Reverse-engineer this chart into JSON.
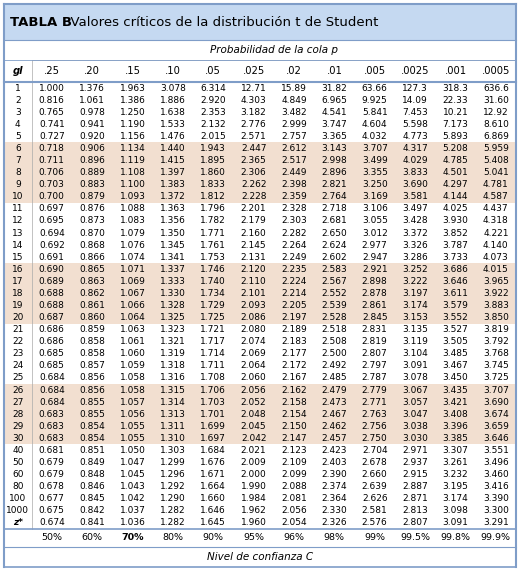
{
  "title_bold": "TABLA B",
  "title_normal": "  Valores críticos de la distribución t de Student",
  "subtitle": "Probabilidad de la cola p",
  "col_header": [
    "gl",
    ".25",
    ".20",
    ".15",
    ".10",
    ".05",
    ".025",
    ".02",
    ".01",
    ".005",
    ".0025",
    ".001",
    ".0005"
  ],
  "footer_row": [
    "",
    "50%",
    "60%",
    "70%",
    "80%",
    "90%",
    "95%",
    "96%",
    "98%",
    "99%",
    "99.5%",
    "99.8%",
    "99.9%"
  ],
  "footer_label": "Nivel de confianza C",
  "rows": [
    [
      "1",
      "1.000",
      "1.376",
      "1.963",
      "3.078",
      "6.314",
      "12.71",
      "15.89",
      "31.82",
      "63.66",
      "127.3",
      "318.3",
      "636.6"
    ],
    [
      "2",
      "0.816",
      "1.061",
      "1.386",
      "1.886",
      "2.920",
      "4.303",
      "4.849",
      "6.965",
      "9.925",
      "14.09",
      "22.33",
      "31.60"
    ],
    [
      "3",
      "0.765",
      "0.978",
      "1.250",
      "1.638",
      "2.353",
      "3.182",
      "3.482",
      "4.541",
      "5.841",
      "7.453",
      "10.21",
      "12.92"
    ],
    [
      "4",
      "0.741",
      "0.941",
      "1.190",
      "1.533",
      "2.132",
      "2.776",
      "2.999",
      "3.747",
      "4.604",
      "5.598",
      "7.173",
      "8.610"
    ],
    [
      "5",
      "0.727",
      "0.920",
      "1.156",
      "1.476",
      "2.015",
      "2.571",
      "2.757",
      "3.365",
      "4.032",
      "4.773",
      "5.893",
      "6.869"
    ],
    [
      "6",
      "0.718",
      "0.906",
      "1.134",
      "1.440",
      "1.943",
      "2.447",
      "2.612",
      "3.143",
      "3.707",
      "4.317",
      "5.208",
      "5.959"
    ],
    [
      "7",
      "0.711",
      "0.896",
      "1.119",
      "1.415",
      "1.895",
      "2.365",
      "2.517",
      "2.998",
      "3.499",
      "4.029",
      "4.785",
      "5.408"
    ],
    [
      "8",
      "0.706",
      "0.889",
      "1.108",
      "1.397",
      "1.860",
      "2.306",
      "2.449",
      "2.896",
      "3.355",
      "3.833",
      "4.501",
      "5.041"
    ],
    [
      "9",
      "0.703",
      "0.883",
      "1.100",
      "1.383",
      "1.833",
      "2.262",
      "2.398",
      "2.821",
      "3.250",
      "3.690",
      "4.297",
      "4.781"
    ],
    [
      "10",
      "0.700",
      "0.879",
      "1.093",
      "1.372",
      "1.812",
      "2.228",
      "2.359",
      "2.764",
      "3.169",
      "3.581",
      "4.144",
      "4.587"
    ],
    [
      "11",
      "0.697",
      "0.876",
      "1.088",
      "1.363",
      "1.796",
      "2.201",
      "2.328",
      "2.718",
      "3.106",
      "3.497",
      "4.025",
      "4.437"
    ],
    [
      "12",
      "0.695",
      "0.873",
      "1.083",
      "1.356",
      "1.782",
      "2.179",
      "2.303",
      "2.681",
      "3.055",
      "3.428",
      "3.930",
      "4.318"
    ],
    [
      "13",
      "0.694",
      "0.870",
      "1.079",
      "1.350",
      "1.771",
      "2.160",
      "2.282",
      "2.650",
      "3.012",
      "3.372",
      "3.852",
      "4.221"
    ],
    [
      "14",
      "0.692",
      "0.868",
      "1.076",
      "1.345",
      "1.761",
      "2.145",
      "2.264",
      "2.624",
      "2.977",
      "3.326",
      "3.787",
      "4.140"
    ],
    [
      "15",
      "0.691",
      "0.866",
      "1.074",
      "1.341",
      "1.753",
      "2.131",
      "2.249",
      "2.602",
      "2.947",
      "3.286",
      "3.733",
      "4.073"
    ],
    [
      "16",
      "0.690",
      "0.865",
      "1.071",
      "1.337",
      "1.746",
      "2.120",
      "2.235",
      "2.583",
      "2.921",
      "3.252",
      "3.686",
      "4.015"
    ],
    [
      "17",
      "0.689",
      "0.863",
      "1.069",
      "1.333",
      "1.740",
      "2.110",
      "2.224",
      "2.567",
      "2.898",
      "3.222",
      "3.646",
      "3.965"
    ],
    [
      "18",
      "0.688",
      "0.862",
      "1.067",
      "1.330",
      "1.734",
      "2.101",
      "2.214",
      "2.552",
      "2.878",
      "3.197",
      "3.611",
      "3.922"
    ],
    [
      "19",
      "0.688",
      "0.861",
      "1.066",
      "1.328",
      "1.729",
      "2.093",
      "2.205",
      "2.539",
      "2.861",
      "3.174",
      "3.579",
      "3.883"
    ],
    [
      "20",
      "0.687",
      "0.860",
      "1.064",
      "1.325",
      "1.725",
      "2.086",
      "2.197",
      "2.528",
      "2.845",
      "3.153",
      "3.552",
      "3.850"
    ],
    [
      "21",
      "0.686",
      "0.859",
      "1.063",
      "1.323",
      "1.721",
      "2.080",
      "2.189",
      "2.518",
      "2.831",
      "3.135",
      "3.527",
      "3.819"
    ],
    [
      "22",
      "0.686",
      "0.858",
      "1.061",
      "1.321",
      "1.717",
      "2.074",
      "2.183",
      "2.508",
      "2.819",
      "3.119",
      "3.505",
      "3.792"
    ],
    [
      "23",
      "0.685",
      "0.858",
      "1.060",
      "1.319",
      "1.714",
      "2.069",
      "2.177",
      "2.500",
      "2.807",
      "3.104",
      "3.485",
      "3.768"
    ],
    [
      "24",
      "0.685",
      "0.857",
      "1.059",
      "1.318",
      "1.711",
      "2.064",
      "2.172",
      "2.492",
      "2.797",
      "3.091",
      "3.467",
      "3.745"
    ],
    [
      "25",
      "0.684",
      "0.856",
      "1.058",
      "1.316",
      "1.708",
      "2.060",
      "2.167",
      "2.485",
      "2.787",
      "3.078",
      "3.450",
      "3.725"
    ],
    [
      "26",
      "0.684",
      "0.856",
      "1.058",
      "1.315",
      "1.706",
      "2.056",
      "2.162",
      "2.479",
      "2.779",
      "3.067",
      "3.435",
      "3.707"
    ],
    [
      "27",
      "0.684",
      "0.855",
      "1.057",
      "1.314",
      "1.703",
      "2.052",
      "2.158",
      "2.473",
      "2.771",
      "3.057",
      "3.421",
      "3.690"
    ],
    [
      "28",
      "0.683",
      "0.855",
      "1.056",
      "1.313",
      "1.701",
      "2.048",
      "2.154",
      "2.467",
      "2.763",
      "3.047",
      "3.408",
      "3.674"
    ],
    [
      "29",
      "0.683",
      "0.854",
      "1.055",
      "1.311",
      "1.699",
      "2.045",
      "2.150",
      "2.462",
      "2.756",
      "3.038",
      "3.396",
      "3.659"
    ],
    [
      "30",
      "0.683",
      "0.854",
      "1.055",
      "1.310",
      "1.697",
      "2.042",
      "2.147",
      "2.457",
      "2.750",
      "3.030",
      "3.385",
      "3.646"
    ],
    [
      "40",
      "0.681",
      "0.851",
      "1.050",
      "1.303",
      "1.684",
      "2.021",
      "2.123",
      "2.423",
      "2.704",
      "2.971",
      "3.307",
      "3.551"
    ],
    [
      "50",
      "0.679",
      "0.849",
      "1.047",
      "1.299",
      "1.676",
      "2.009",
      "2.109",
      "2.403",
      "2.678",
      "2.937",
      "3.261",
      "3.496"
    ],
    [
      "60",
      "0.679",
      "0.848",
      "1.045",
      "1.296",
      "1.671",
      "2.000",
      "2.099",
      "2.390",
      "2.660",
      "2.915",
      "3.232",
      "3.460"
    ],
    [
      "80",
      "0.678",
      "0.846",
      "1.043",
      "1.292",
      "1.664",
      "1.990",
      "2.088",
      "2.374",
      "2.639",
      "2.887",
      "3.195",
      "3.416"
    ],
    [
      "100",
      "0.677",
      "0.845",
      "1.042",
      "1.290",
      "1.660",
      "1.984",
      "2.081",
      "2.364",
      "2.626",
      "2.871",
      "3.174",
      "3.390"
    ],
    [
      "1000",
      "0.675",
      "0.842",
      "1.037",
      "1.282",
      "1.646",
      "1.962",
      "2.056",
      "2.330",
      "2.581",
      "2.813",
      "3.098",
      "3.300"
    ],
    [
      "z*",
      "0.674",
      "0.841",
      "1.036",
      "1.282",
      "1.645",
      "1.960",
      "2.054",
      "2.326",
      "2.576",
      "2.807",
      "3.091",
      "3.291"
    ]
  ],
  "shaded_row_indices": [
    5,
    6,
    7,
    8,
    9,
    15,
    16,
    17,
    18,
    19,
    25,
    26,
    27,
    28,
    29,
    37
  ],
  "highlight_row": 37,
  "highlight_col": 3,
  "shade_color": "#f2dfd0",
  "highlight_color": "#ffff00",
  "title_bg": "#c5d9f1",
  "outer_border_color": "#7f9dc8",
  "inner_line_color": "#7f9dc8"
}
